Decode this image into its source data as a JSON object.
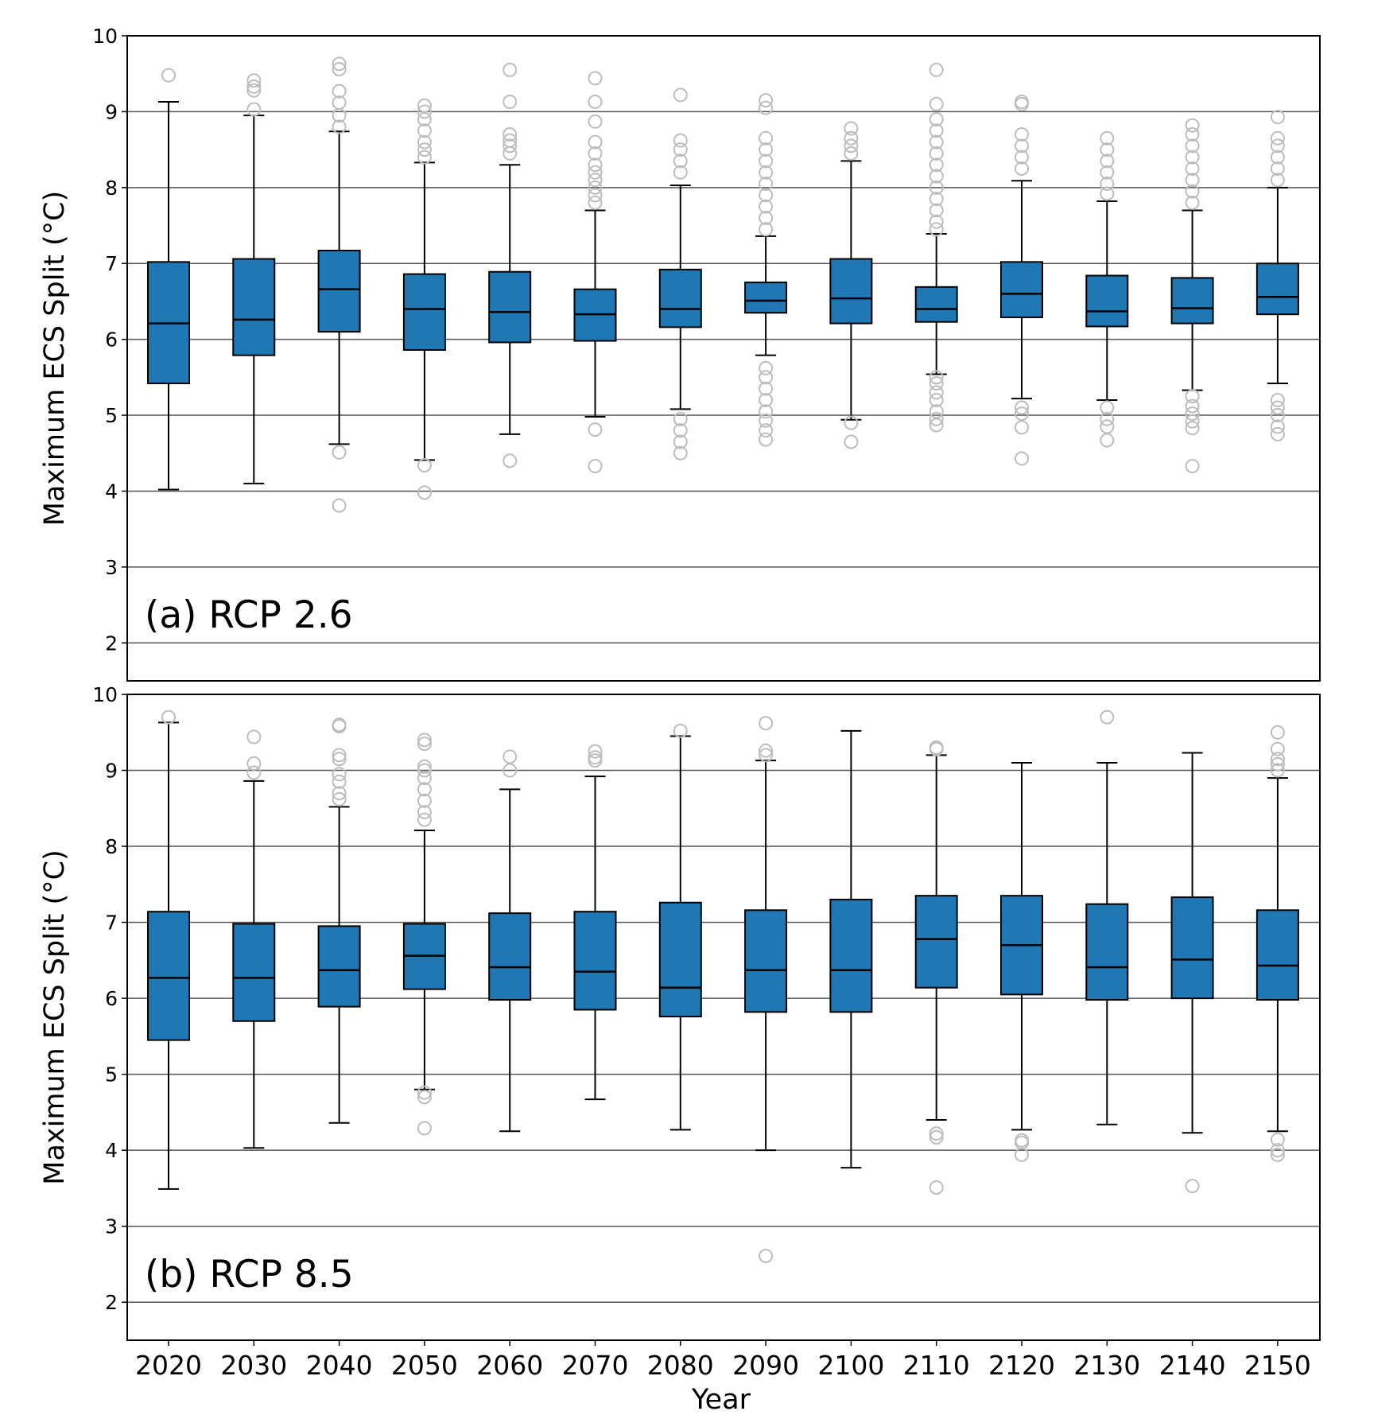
{
  "chart_data": [
    {
      "type": "box",
      "panel_label": "(a) RCP 2.6",
      "ylabel": "Maximum ECS Split (°C)",
      "ylim": [
        1.5,
        10
      ],
      "yticks": [
        2,
        3,
        4,
        5,
        6,
        7,
        8,
        9,
        10
      ],
      "grid": "horizontal",
      "categories": [
        "2020",
        "2030",
        "2040",
        "2050",
        "2060",
        "2070",
        "2080",
        "2090",
        "2100",
        "2110",
        "2120",
        "2130",
        "2140",
        "2150"
      ],
      "boxes": [
        {
          "whislo": 4.02,
          "q1": 5.42,
          "med": 6.21,
          "q3": 7.02,
          "whishi": 9.13,
          "fliers": [
            9.48
          ]
        },
        {
          "whislo": 4.1,
          "q1": 5.79,
          "med": 6.26,
          "q3": 7.06,
          "whishi": 8.95,
          "fliers": [
            9.03,
            9.28,
            9.33,
            9.41
          ]
        },
        {
          "whislo": 4.62,
          "q1": 6.1,
          "med": 6.66,
          "q3": 7.17,
          "whishi": 8.74,
          "fliers": [
            3.81,
            4.51,
            8.8,
            8.95,
            9.12,
            9.27,
            9.56,
            9.63
          ]
        },
        {
          "whislo": 4.41,
          "q1": 5.86,
          "med": 6.4,
          "q3": 6.86,
          "whishi": 8.33,
          "fliers": [
            3.98,
            4.34,
            8.4,
            8.5,
            8.6,
            8.75,
            8.9,
            9.0,
            9.08
          ]
        },
        {
          "whislo": 4.75,
          "q1": 5.96,
          "med": 6.36,
          "q3": 6.89,
          "whishi": 8.3,
          "fliers": [
            4.4,
            8.45,
            8.55,
            8.62,
            8.7,
            9.13,
            9.55
          ]
        },
        {
          "whislo": 4.98,
          "q1": 5.98,
          "med": 6.33,
          "q3": 6.66,
          "whishi": 7.7,
          "fliers": [
            4.33,
            4.81,
            7.8,
            7.9,
            8.0,
            8.1,
            8.2,
            8.3,
            8.45,
            8.6,
            8.87,
            9.13,
            9.44
          ]
        },
        {
          "whislo": 5.08,
          "q1": 6.16,
          "med": 6.4,
          "q3": 6.92,
          "whishi": 8.03,
          "fliers": [
            4.5,
            4.65,
            4.8,
            4.95,
            8.2,
            8.35,
            8.5,
            8.62,
            9.22
          ]
        },
        {
          "whislo": 5.79,
          "q1": 6.35,
          "med": 6.51,
          "q3": 6.75,
          "whishi": 7.36,
          "fliers": [
            4.68,
            4.8,
            4.93,
            5.05,
            5.2,
            5.35,
            5.5,
            5.62,
            7.45,
            7.6,
            7.75,
            7.9,
            8.05,
            8.2,
            8.35,
            8.5,
            8.65,
            9.05,
            9.15
          ]
        },
        {
          "whislo": 4.94,
          "q1": 6.21,
          "med": 6.54,
          "q3": 7.06,
          "whishi": 8.35,
          "fliers": [
            4.65,
            4.9,
            8.45,
            8.55,
            8.65,
            8.78
          ]
        },
        {
          "whislo": 5.54,
          "q1": 6.23,
          "med": 6.4,
          "q3": 6.69,
          "whishi": 7.39,
          "fliers": [
            4.87,
            4.95,
            5.05,
            5.2,
            5.3,
            5.42,
            5.5,
            7.45,
            7.55,
            7.7,
            7.85,
            8.0,
            8.15,
            8.3,
            8.45,
            8.6,
            8.75,
            8.9,
            9.1,
            9.55
          ]
        },
        {
          "whislo": 5.22,
          "q1": 6.29,
          "med": 6.6,
          "q3": 7.02,
          "whishi": 8.09,
          "fliers": [
            4.43,
            4.84,
            5.02,
            5.1,
            8.25,
            8.4,
            8.55,
            8.7,
            9.1,
            9.13
          ]
        },
        {
          "whislo": 5.2,
          "q1": 6.17,
          "med": 6.37,
          "q3": 6.84,
          "whishi": 7.82,
          "fliers": [
            4.67,
            4.85,
            4.95,
            5.1,
            7.92,
            8.05,
            8.2,
            8.35,
            8.5,
            8.65
          ]
        },
        {
          "whislo": 5.33,
          "q1": 6.21,
          "med": 6.41,
          "q3": 6.81,
          "whishi": 7.7,
          "fliers": [
            4.33,
            4.83,
            4.92,
            5.02,
            5.12,
            5.25,
            7.8,
            7.95,
            8.1,
            8.25,
            8.4,
            8.55,
            8.7,
            8.82
          ]
        },
        {
          "whislo": 5.42,
          "q1": 6.33,
          "med": 6.56,
          "q3": 7.0,
          "whishi": 8.0,
          "fliers": [
            4.75,
            4.85,
            5.0,
            5.1,
            5.2,
            8.1,
            8.25,
            8.4,
            8.55,
            8.65,
            8.93
          ]
        }
      ]
    },
    {
      "type": "box",
      "panel_label": "(b) RCP 8.5",
      "ylabel": "Maximum ECS Split (°C)",
      "xlabel": "Year",
      "ylim": [
        1.5,
        10
      ],
      "yticks": [
        2,
        3,
        4,
        5,
        6,
        7,
        8,
        9,
        10
      ],
      "grid": "horizontal",
      "categories": [
        "2020",
        "2030",
        "2040",
        "2050",
        "2060",
        "2070",
        "2080",
        "2090",
        "2100",
        "2110",
        "2120",
        "2130",
        "2140",
        "2150"
      ],
      "boxes": [
        {
          "whislo": 3.49,
          "q1": 5.45,
          "med": 6.27,
          "q3": 7.14,
          "whishi": 9.63,
          "fliers": [
            9.7
          ]
        },
        {
          "whislo": 4.03,
          "q1": 5.7,
          "med": 6.27,
          "q3": 6.98,
          "whishi": 8.86,
          "fliers": [
            8.97,
            9.09,
            9.44
          ]
        },
        {
          "whislo": 4.36,
          "q1": 5.89,
          "med": 6.37,
          "q3": 6.95,
          "whishi": 8.52,
          "fliers": [
            8.62,
            8.7,
            8.85,
            8.95,
            9.15,
            9.2,
            9.58,
            9.6
          ]
        },
        {
          "whislo": 4.8,
          "q1": 6.12,
          "med": 6.56,
          "q3": 6.98,
          "whishi": 8.21,
          "fliers": [
            4.29,
            4.7,
            4.76,
            8.35,
            8.45,
            8.6,
            8.75,
            8.9,
            9.0,
            9.05,
            9.35,
            9.4
          ]
        },
        {
          "whislo": 4.25,
          "q1": 5.98,
          "med": 6.41,
          "q3": 7.12,
          "whishi": 8.75,
          "fliers": [
            9.0,
            9.18
          ]
        },
        {
          "whislo": 4.67,
          "q1": 5.85,
          "med": 6.35,
          "q3": 7.14,
          "whishi": 8.92,
          "fliers": [
            9.13,
            9.17,
            9.25
          ]
        },
        {
          "whislo": 4.27,
          "q1": 5.76,
          "med": 6.14,
          "q3": 7.26,
          "whishi": 9.45,
          "fliers": [
            9.52
          ]
        },
        {
          "whislo": 4.0,
          "q1": 5.82,
          "med": 6.37,
          "q3": 7.16,
          "whishi": 9.13,
          "fliers": [
            2.61,
            9.2,
            9.26,
            9.62
          ]
        },
        {
          "whislo": 3.77,
          "q1": 5.82,
          "med": 6.37,
          "q3": 7.3,
          "whishi": 9.52,
          "fliers": []
        },
        {
          "whislo": 4.4,
          "q1": 6.14,
          "med": 6.78,
          "q3": 7.35,
          "whishi": 9.2,
          "fliers": [
            3.51,
            4.17,
            4.22,
            9.28,
            9.3
          ]
        },
        {
          "whislo": 4.27,
          "q1": 6.05,
          "med": 6.7,
          "q3": 7.35,
          "whishi": 9.1,
          "fliers": [
            3.94,
            4.1,
            4.13
          ]
        },
        {
          "whislo": 4.34,
          "q1": 5.98,
          "med": 6.41,
          "q3": 7.24,
          "whishi": 9.1,
          "fliers": [
            9.7
          ]
        },
        {
          "whislo": 4.23,
          "q1": 6.0,
          "med": 6.51,
          "q3": 7.33,
          "whishi": 9.23,
          "fliers": [
            3.53
          ]
        },
        {
          "whislo": 4.25,
          "q1": 5.98,
          "med": 6.43,
          "q3": 7.16,
          "whishi": 8.9,
          "fliers": [
            3.94,
            4.0,
            4.14,
            9.0,
            9.08,
            9.15,
            9.28,
            9.5
          ]
        }
      ]
    }
  ]
}
